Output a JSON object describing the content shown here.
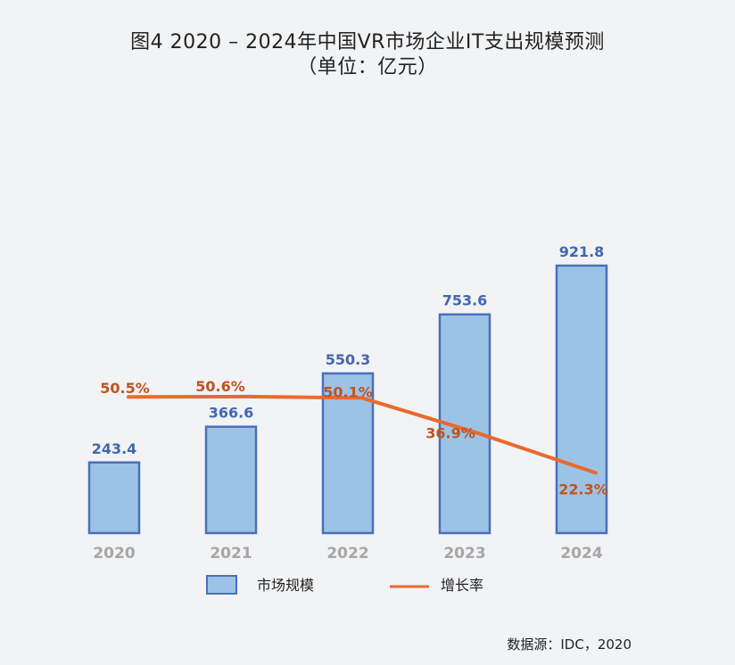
{
  "chart_data": {
    "type": "bar",
    "title": "图4 2020 – 2024年中国VR市场企业IT支出规模预测",
    "subtitle": "（单位：亿元）",
    "categories": [
      "2020",
      "2021",
      "2022",
      "2023",
      "2024"
    ],
    "series": [
      {
        "name": "市场规模",
        "type": "bar",
        "values": [
          243.4,
          366.6,
          550.3,
          753.6,
          921.8
        ],
        "labels": [
          "243.4",
          "366.6",
          "550.3",
          "753.6",
          "921.8"
        ],
        "color": "#9cc3e6",
        "border_color": "#4b6fba"
      },
      {
        "name": "增长率",
        "type": "line",
        "values": [
          50.5,
          50.6,
          50.1,
          36.9,
          22.3
        ],
        "labels": [
          "50.5%",
          "50.6%",
          "50.1%",
          "36.9%",
          "22.3%"
        ],
        "color": "#e96a2c"
      }
    ],
    "ylim": [
      0,
      1060
    ],
    "y2lim": [
      0,
      114
    ],
    "grid": false,
    "legend": "bottom",
    "source": "数据源：IDC，2020"
  }
}
